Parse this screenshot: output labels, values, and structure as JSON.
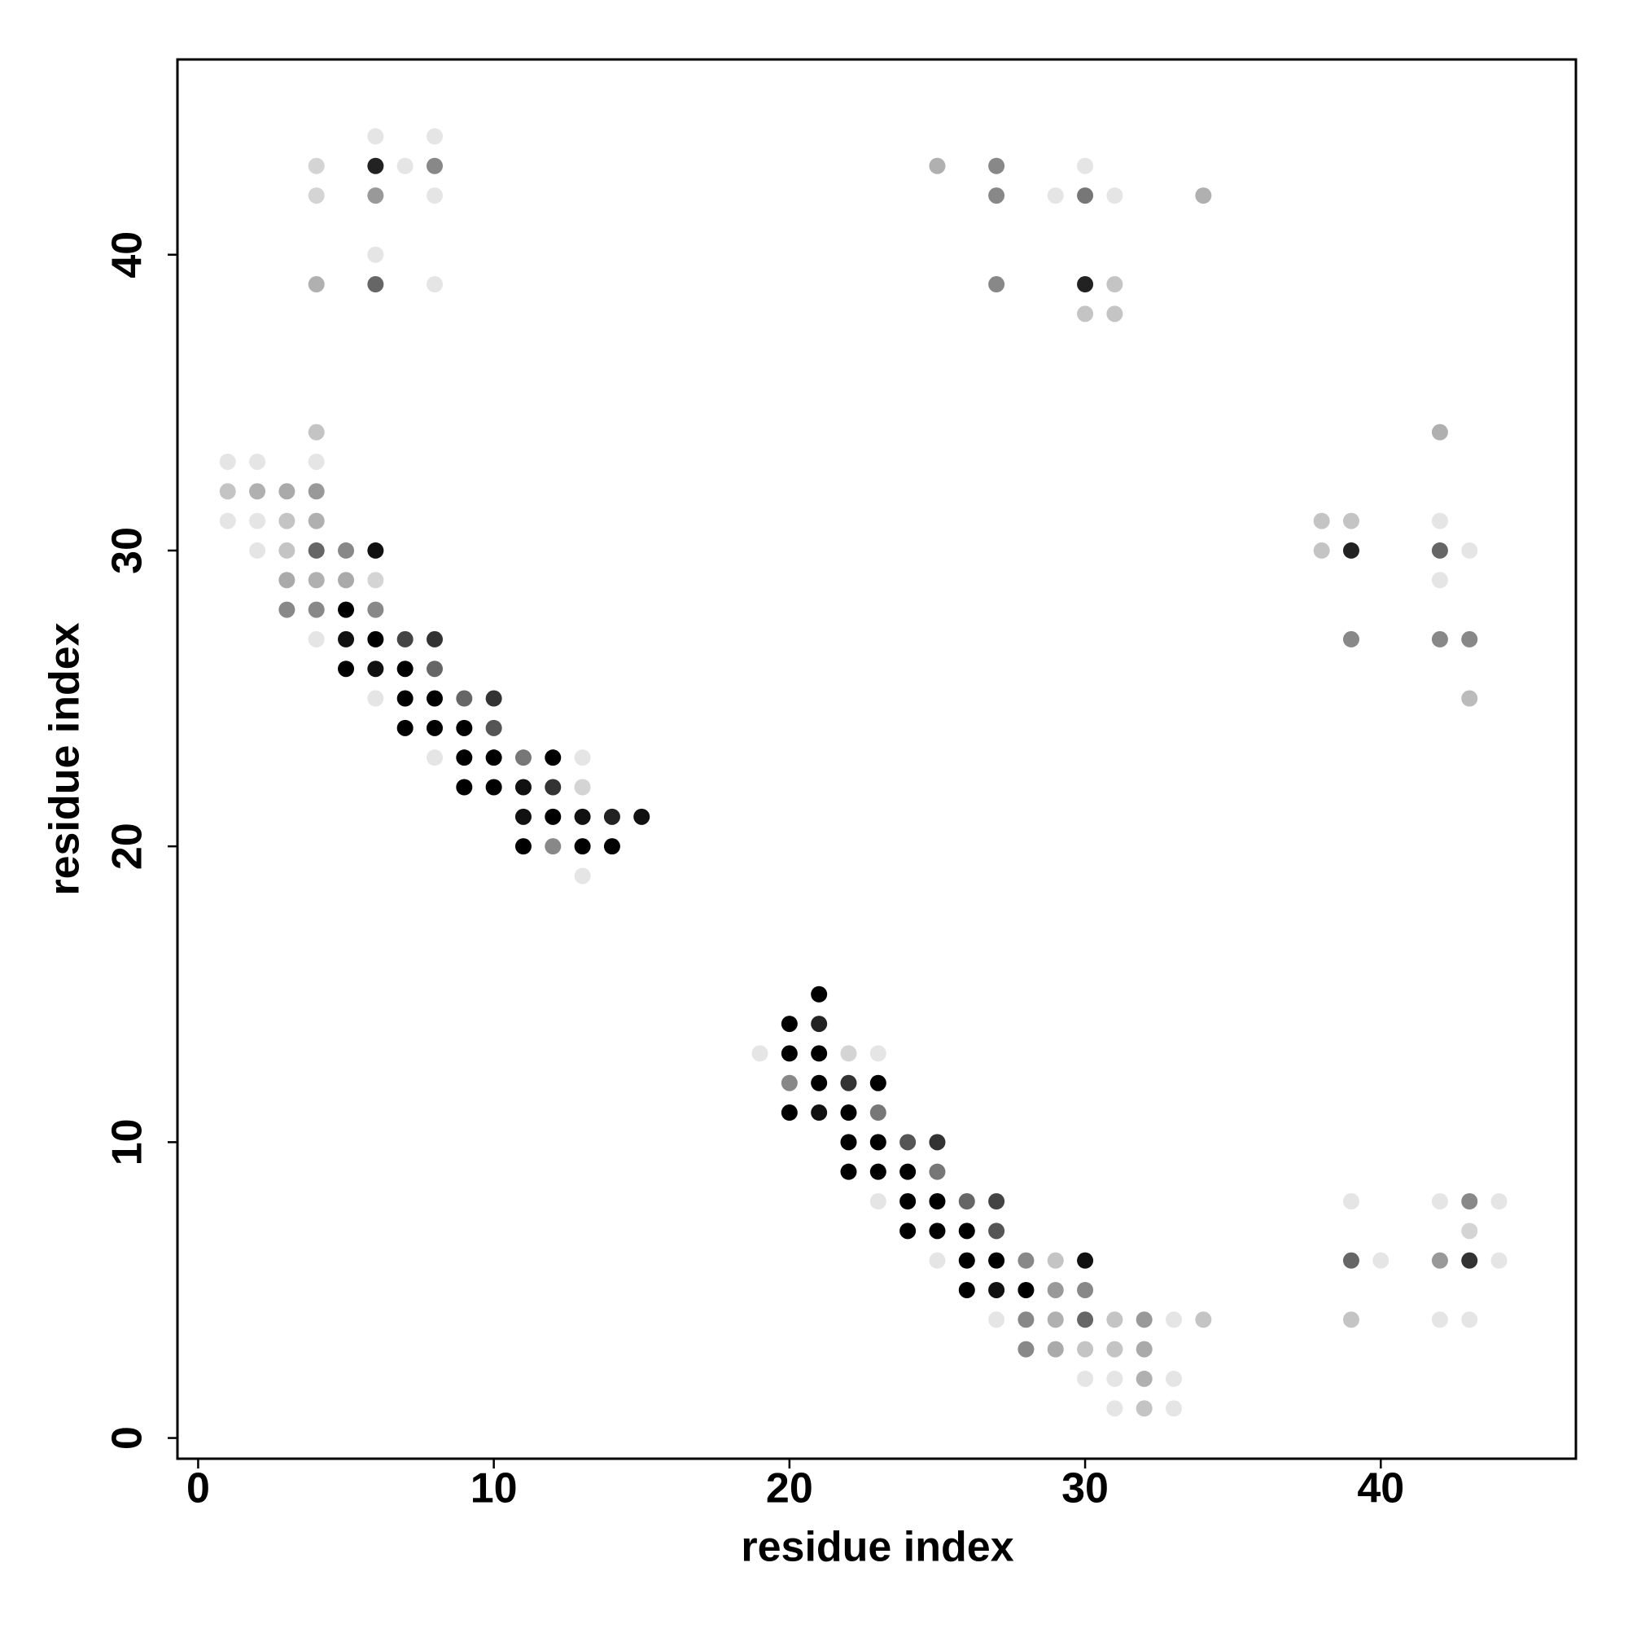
{
  "chart_data": {
    "type": "scatter",
    "x_label": "residue index",
    "y_label": "residue index",
    "xlim": [
      -0.7,
      46.6
    ],
    "ylim": [
      -0.7,
      46.6
    ],
    "xticks": [
      0,
      10,
      20,
      30,
      40
    ],
    "yticks": [
      0,
      10,
      20,
      30,
      40
    ],
    "grid": false,
    "x": [
      6,
      8,
      4,
      6,
      7,
      8,
      4,
      6,
      8,
      6,
      4,
      6,
      8,
      25,
      27,
      30,
      27,
      29,
      30,
      31,
      34,
      27,
      30,
      31,
      30,
      31,
      4,
      1,
      2,
      4,
      1,
      2,
      3,
      4,
      1,
      2,
      3,
      4,
      2,
      3,
      4,
      5,
      6,
      3,
      4,
      5,
      6,
      3,
      4,
      5,
      6,
      4,
      5,
      6,
      7,
      8,
      5,
      6,
      7,
      8,
      6,
      7,
      8,
      9,
      10,
      7,
      8,
      9,
      10,
      8,
      9,
      10,
      11,
      12,
      13,
      9,
      10,
      11,
      12,
      13,
      11,
      12,
      13,
      14,
      15,
      11,
      12,
      13,
      14,
      13,
      21,
      20,
      21,
      19,
      20,
      21,
      22,
      23,
      20,
      21,
      22,
      23,
      20,
      21,
      22,
      23,
      22,
      23,
      24,
      25,
      22,
      23,
      24,
      25,
      23,
      24,
      25,
      26,
      27,
      24,
      25,
      26,
      27,
      25,
      26,
      27,
      28,
      29,
      30,
      26,
      27,
      28,
      29,
      30,
      27,
      28,
      29,
      30,
      31,
      32,
      33,
      34,
      28,
      29,
      30,
      31,
      32,
      30,
      31,
      32,
      33,
      31,
      32,
      33,
      42,
      38,
      39,
      42,
      38,
      39,
      42,
      43,
      42,
      39,
      42,
      43,
      43,
      39,
      42,
      43,
      44,
      43,
      39,
      40,
      42,
      43,
      44,
      39,
      42,
      43
    ],
    "y": [
      44,
      44,
      43,
      43,
      43,
      43,
      42,
      42,
      42,
      40,
      39,
      39,
      39,
      43,
      43,
      43,
      42,
      42,
      42,
      42,
      42,
      39,
      39,
      39,
      38,
      38,
      34,
      33,
      33,
      33,
      32,
      32,
      32,
      32,
      31,
      31,
      31,
      31,
      30,
      30,
      30,
      30,
      30,
      29,
      29,
      29,
      29,
      28,
      28,
      28,
      28,
      27,
      27,
      27,
      27,
      27,
      26,
      26,
      26,
      26,
      25,
      25,
      25,
      25,
      25,
      24,
      24,
      24,
      24,
      23,
      23,
      23,
      23,
      23,
      23,
      22,
      22,
      22,
      22,
      22,
      21,
      21,
      21,
      21,
      21,
      20,
      20,
      20,
      20,
      19,
      15,
      14,
      14,
      13,
      13,
      13,
      13,
      13,
      12,
      12,
      12,
      12,
      11,
      11,
      11,
      11,
      10,
      10,
      10,
      10,
      9,
      9,
      9,
      9,
      8,
      8,
      8,
      8,
      8,
      7,
      7,
      7,
      7,
      6,
      6,
      6,
      6,
      6,
      6,
      5,
      5,
      5,
      5,
      5,
      4,
      4,
      4,
      4,
      4,
      4,
      4,
      4,
      3,
      3,
      3,
      3,
      3,
      2,
      2,
      2,
      2,
      1,
      1,
      1,
      34,
      31,
      31,
      31,
      30,
      30,
      30,
      30,
      29,
      27,
      27,
      27,
      25,
      8,
      8,
      8,
      8,
      7,
      6,
      6,
      6,
      6,
      6,
      4,
      4,
      4
    ],
    "colors": [
      "#e5e5e5",
      "#e5e5e5",
      "#d4d4d4",
      "#222",
      "#e5e5e5",
      "#888",
      "#d4d4d4",
      "#999",
      "#e5e5e5",
      "#e5e5e5",
      "#b0b0b0",
      "#666",
      "#e5e5e5",
      "#b0b0b0",
      "#888",
      "#e5e5e5",
      "#888",
      "#e5e5e5",
      "#777",
      "#e5e5e5",
      "#b0b0b0",
      "#888",
      "#222",
      "#c4c4c4",
      "#c4c4c4",
      "#c4c4c4",
      "#c4c4c4",
      "#e5e5e5",
      "#e5e5e5",
      "#e5e5e5",
      "#c4c4c4",
      "#b0b0b0",
      "#aaa",
      "#999",
      "#e5e5e5",
      "#e5e5e5",
      "#c4c4c4",
      "#b0b0b0",
      "#e5e5e5",
      "#c4c4c4",
      "#666",
      "#888",
      "#111",
      "#aaa",
      "#b0b0b0",
      "#aaa",
      "#d4d4d4",
      "#888",
      "#888",
      "#000",
      "#888",
      "#e5e5e5",
      "#111",
      "#000",
      "#444",
      "#333",
      "#000",
      "#111",
      "#000",
      "#666",
      "#e5e5e5",
      "#000",
      "#000",
      "#666",
      "#333",
      "#000",
      "#000",
      "#000",
      "#555",
      "#e5e5e5",
      "#000",
      "#000",
      "#777",
      "#000",
      "#e5e5e5",
      "#000",
      "#000",
      "#111",
      "#333",
      "#d4d4d4",
      "#111",
      "#000",
      "#111",
      "#222",
      "#111",
      "#000",
      "#888",
      "#000",
      "#000",
      "#e5e5e5",
      "#000",
      "#000",
      "#222",
      "#e5e5e5",
      "#000",
      "#000",
      "#d4d4d4",
      "#e5e5e5",
      "#888",
      "#000",
      "#333",
      "#000",
      "#000",
      "#111",
      "#000",
      "#777",
      "#000",
      "#000",
      "#555",
      "#333",
      "#000",
      "#000",
      "#000",
      "#777",
      "#e5e5e5",
      "#000",
      "#000",
      "#666",
      "#444",
      "#000",
      "#000",
      "#000",
      "#555",
      "#e5e5e5",
      "#000",
      "#000",
      "#888",
      "#c4c4c4",
      "#111",
      "#000",
      "#111",
      "#000",
      "#999",
      "#888",
      "#e5e5e5",
      "#888",
      "#b0b0b0",
      "#666",
      "#c4c4c4",
      "#999",
      "#e5e5e5",
      "#c4c4c4",
      "#888",
      "#aaa",
      "#c4c4c4",
      "#c4c4c4",
      "#aaa",
      "#e5e5e5",
      "#e5e5e5",
      "#b0b0b0",
      "#e5e5e5",
      "#e5e5e5",
      "#c4c4c4",
      "#e5e5e5",
      "#b0b0b0",
      "#c4c4c4",
      "#c4c4c4",
      "#e5e5e5",
      "#c4c4c4",
      "#222",
      "#666",
      "#e5e5e5",
      "#e5e5e5",
      "#888",
      "#888",
      "#888",
      "#bbb",
      "#e5e5e5",
      "#e5e5e5",
      "#888",
      "#e5e5e5",
      "#d4d4d4",
      "#666",
      "#e5e5e5",
      "#999",
      "#333",
      "#e5e5e5",
      "#c4c4c4",
      "#e5e5e5",
      "#e5e5e5"
    ]
  }
}
